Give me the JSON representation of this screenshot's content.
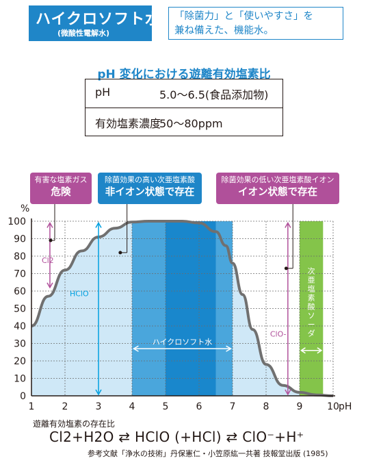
{
  "header": {
    "title": "ハイクロソフト水",
    "subtitle": "(微酸性電解水)",
    "tagline_line1": "「除菌力」と「使いやすさ」を",
    "tagline_line2": "兼ね備えた、機能水。",
    "color": "#1f86c8"
  },
  "table": {
    "title": "pH 変化における遊離有効塩素比",
    "rows": [
      {
        "label": "pH",
        "value": "5.0〜6.5(食品添加物)"
      },
      {
        "label": "有効塩素濃度",
        "value": "50〜80ppm"
      }
    ]
  },
  "callouts": {
    "danger": {
      "line1": "有害な塩素ガス",
      "line2": "危険",
      "color": "#b0509a"
    },
    "hclo": {
      "line1": "除菌効果の高い次亜塩素酸",
      "line2": "非イオン状態で存在",
      "color": "#1f86c8"
    },
    "clo": {
      "line1": "除菌効果の低い次亜塩素酸イオン",
      "line2": "イオン状態で存在",
      "color": "#b0509a"
    }
  },
  "chart_data": {
    "type": "area",
    "ylabel": "%",
    "xunit": "pH",
    "xlim": [
      1,
      10
    ],
    "ylim": [
      0,
      100
    ],
    "x_ticks": [
      "1",
      "2",
      "3",
      "4",
      "5",
      "6",
      "7",
      "8",
      "9",
      "10"
    ],
    "y_ticks": [
      "0",
      "10",
      "20",
      "30",
      "40",
      "50",
      "60",
      "70",
      "80",
      "90",
      "100"
    ],
    "grid": true,
    "curve": {
      "x": [
        1,
        1.5,
        2,
        2.5,
        3,
        3.5,
        4,
        4.5,
        5,
        5.5,
        6,
        6.5,
        6.8,
        7,
        7.3,
        7.6,
        8,
        8.5,
        9,
        9.5,
        10
      ],
      "y": [
        40,
        57,
        72,
        83,
        91,
        96,
        99.5,
        100,
        100,
        100,
        99,
        94,
        86,
        76,
        58,
        38,
        18,
        6,
        2,
        0.5,
        0
      ]
    },
    "bands": [
      {
        "x0": 4,
        "x1": 5,
        "color": "#4aa6dc"
      },
      {
        "x0": 5,
        "x1": 6.5,
        "color": "#1987cc"
      },
      {
        "x0": 6.5,
        "x1": 7,
        "color": "#4aa6dc"
      },
      {
        "x0": 9,
        "x1": 9.7,
        "color": "#84c44a"
      }
    ],
    "annotations": {
      "cl2": "Cl2",
      "hclo": "HClO",
      "clo": "ClO-",
      "range_label": "ハイクロソフト水",
      "soda": "次亜塩素酸ソーダ"
    }
  },
  "footer": {
    "caption": "遊離有効塩素の存在比",
    "equation": "Cl2+H2O ⇄ HClO (+HCl) ⇄ ClO⁻+H⁺",
    "reference": "参考文献「浄水の技術」丹保憲仁・小笠原紘一共著 技報堂出版 (1985)"
  }
}
